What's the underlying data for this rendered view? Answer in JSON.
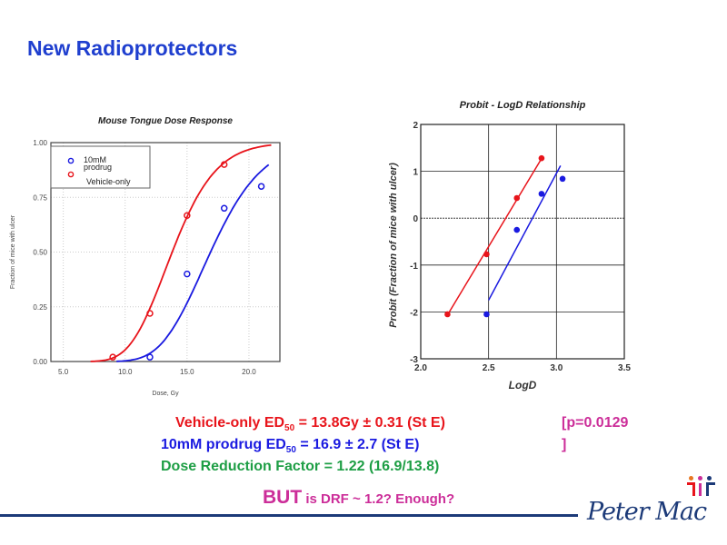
{
  "slide": {
    "title": "New Radioprotectors",
    "stats": {
      "vehicle_prefix": "Vehicle-only ED",
      "vehicle_sub": "50",
      "vehicle_suffix": " = 13.8Gy ± 0.31 (St E)",
      "prodrug_prefix": "10mM prodrug ED",
      "prodrug_sub": "50",
      "prodrug_suffix": " = 16.9 ± 2.7 (St E)",
      "drf": "Dose Reduction Factor = 1.22 (16.9/13.8)"
    },
    "pvalue_line1": "[p=0.0129",
    "pvalue_line2": "]",
    "question_bold": "BUT",
    "question_rest": " is DRF ~ 1.2? Enough?",
    "logo_text": "Peter Mac",
    "colors": {
      "title": "#1f3fcf",
      "vehicle": "#e8141b",
      "prodrug": "#1a1ae0",
      "drf": "#1e9e45",
      "accent": "#cc2e99"
    }
  },
  "chart_data": [
    {
      "type": "scatter",
      "title": "Mouse Tongue Dose Response",
      "xlabel": "Dose, Gy",
      "ylabel": "Fraction of mice with ulcer",
      "xlim": [
        4,
        22.5
      ],
      "ylim": [
        0,
        1
      ],
      "xticks": [
        "5.0",
        "10.0",
        "15.0",
        "20.0"
      ],
      "xtick_values": [
        5,
        10,
        15,
        20
      ],
      "yticks": [
        "0.00",
        "0.25",
        "0.50",
        "0.75",
        "1.00"
      ],
      "ytick_values": [
        0,
        0.25,
        0.5,
        0.75,
        1
      ],
      "grid": true,
      "legend": "top-left",
      "series": [
        {
          "name": "10mM prodrug",
          "legend_line1": "10mM",
          "legend_line2": "prodrug",
          "color": "#1a1ae0",
          "x": [
            12,
            15,
            18,
            21
          ],
          "y": [
            0.02,
            0.4,
            0.7,
            0.8
          ],
          "fit": {
            "model": "probit-log",
            "ed50": 16.9,
            "slope": 5.2,
            "range": [
              9.3,
              21.6
            ]
          }
        },
        {
          "name": "Vehicle-only",
          "color": "#e8141b",
          "x": [
            9,
            12,
            15,
            18
          ],
          "y": [
            0.02,
            0.22,
            0.667,
            0.9
          ],
          "fit": {
            "model": "probit-log",
            "ed50": 13.8,
            "slope": 5.0,
            "range": [
              7.2,
              21.8
            ]
          }
        }
      ]
    },
    {
      "type": "scatter",
      "title": "Probit - LogD Relationship",
      "xlabel": "LogD",
      "ylabel": "Probit (Fraction of mice with ulcer)",
      "xlim": [
        2.0,
        3.5
      ],
      "ylim": [
        -3,
        2
      ],
      "xticks": [
        "2.0",
        "2.5",
        "3.0",
        "3.5"
      ],
      "xtick_values": [
        2.0,
        2.5,
        3.0,
        3.5
      ],
      "yticks": [
        "-3",
        "-2",
        "-1",
        "0",
        "1",
        "2"
      ],
      "ytick_values": [
        -3,
        -2,
        -1,
        0,
        1,
        2
      ],
      "grid": true,
      "series": [
        {
          "name": "Vehicle-only",
          "color": "#e8141b",
          "x": [
            2.197,
            2.485,
            2.708,
            2.89
          ],
          "y": [
            -2.05,
            -0.77,
            0.43,
            1.28
          ],
          "line": {
            "x": [
              2.2,
              2.89
            ],
            "y": [
              -2.05,
              1.27
            ]
          }
        },
        {
          "name": "10mM prodrug",
          "color": "#1a1ae0",
          "x": [
            2.485,
            2.708,
            2.89,
            3.045
          ],
          "y": [
            -2.05,
            -0.25,
            0.52,
            0.84
          ],
          "line": {
            "x": [
              2.5,
              3.03
            ],
            "y": [
              -1.75,
              1.12
            ]
          }
        }
      ]
    }
  ]
}
